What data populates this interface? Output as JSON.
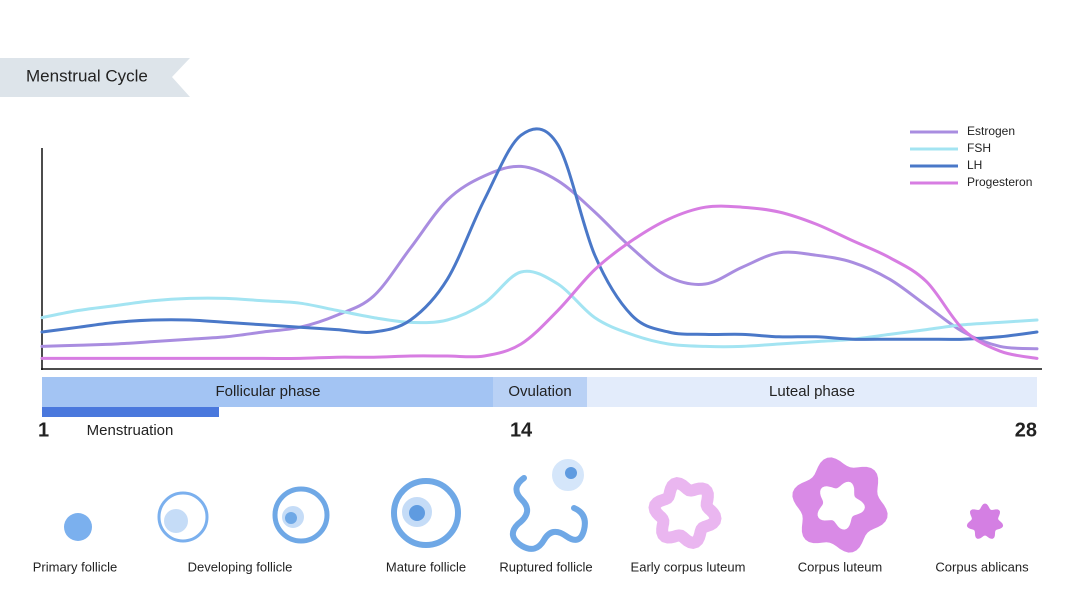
{
  "chart_data": {
    "type": "line",
    "title": "Menstrual Cycle",
    "x": [
      1,
      2,
      3,
      4,
      5,
      6,
      7,
      8,
      9,
      10,
      11,
      12,
      13,
      14,
      15,
      16,
      17,
      18,
      19,
      20,
      21,
      22,
      23,
      24,
      25,
      26,
      27,
      28
    ],
    "xlim": [
      1,
      28
    ],
    "xticks": [
      1,
      14,
      28
    ],
    "ylim": [
      0,
      100
    ],
    "legend": "top-right",
    "series": [
      {
        "name": "Estrogen",
        "color": "#a98de0",
        "values": [
          9,
          9.5,
          10,
          11,
          12,
          13,
          15,
          17,
          22,
          30,
          50,
          70,
          80,
          84,
          78,
          65,
          50,
          38,
          35,
          42,
          48,
          47,
          44,
          37,
          26,
          15,
          9,
          8
        ]
      },
      {
        "name": "FSH",
        "color": "#a3e4f2",
        "values": [
          21,
          24,
          26,
          28,
          29,
          29,
          28,
          27,
          24,
          21,
          19,
          20,
          27,
          40,
          35,
          21,
          14,
          10,
          9,
          9,
          10,
          11,
          12,
          14,
          16,
          18,
          19,
          20
        ]
      },
      {
        "name": "LH",
        "color": "#4a78c8",
        "values": [
          15,
          17,
          19,
          20,
          20,
          19,
          18,
          17,
          16,
          15,
          20,
          37,
          70,
          97,
          93,
          47,
          22,
          15,
          14,
          14,
          13,
          13,
          12,
          12,
          12,
          12,
          13,
          15
        ]
      },
      {
        "name": "Progesteron",
        "color": "#d77de2",
        "values": [
          4,
          4,
          4,
          4,
          4,
          4,
          4,
          4,
          4.5,
          4.5,
          5,
          5,
          5,
          10,
          24,
          41,
          53,
          62,
          67,
          67,
          65,
          60,
          53,
          46,
          36,
          16,
          7,
          4
        ]
      }
    ]
  },
  "phases": [
    "Follicular phase",
    "Ovulation",
    "Luteal phase"
  ],
  "menstruation": "Menstruation",
  "stages": [
    "Primary follicle",
    "Developing follicle",
    "Mature follicle",
    "Ruptured follicle",
    "Early corpus luteum",
    "Corpus luteum",
    "Corpus ablicans"
  ]
}
